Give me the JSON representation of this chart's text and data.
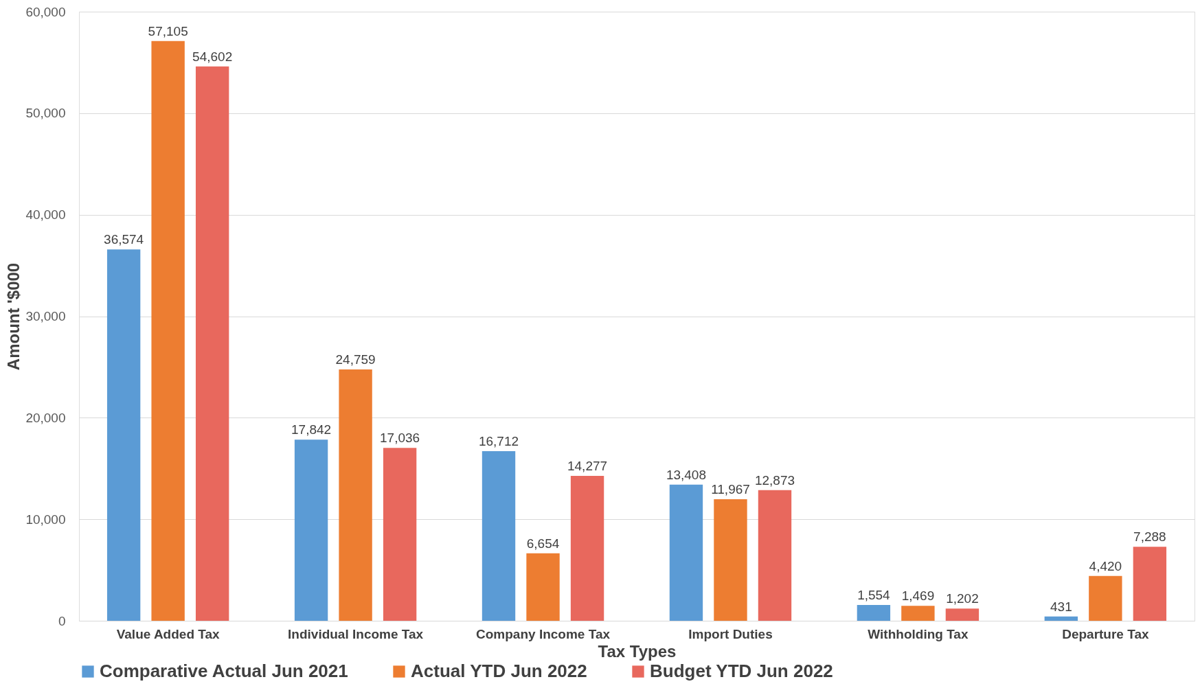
{
  "chart_data": {
    "type": "bar",
    "xlabel": "Tax Types",
    "ylabel": "Amount '$000",
    "categories": [
      "Value Added Tax",
      "Individual Income Tax",
      "Company Income Tax",
      "Import Duties",
      "Withholding Tax",
      "Departure Tax"
    ],
    "series": [
      {
        "name": "Comparative Actual Jun 2021",
        "color": "#5b9bd5",
        "values": [
          36574,
          17842,
          16712,
          13408,
          1554,
          431
        ],
        "value_labels": [
          "36,574",
          "17,842",
          "16,712",
          "13,408",
          "1,554",
          "431"
        ]
      },
      {
        "name": "Actual YTD Jun 2022",
        "color": "#ed7d31",
        "values": [
          57105,
          24759,
          6654,
          11967,
          1469,
          4420
        ],
        "value_labels": [
          "57,105",
          "24,759",
          "6,654",
          "11,967",
          "1,469",
          "4,420"
        ]
      },
      {
        "name": "Budget YTD Jun 2022",
        "color": "#e8685d",
        "values": [
          54602,
          17036,
          14277,
          12873,
          1202,
          7288
        ],
        "value_labels": [
          "54,602",
          "17,036",
          "14,277",
          "12,873",
          "1,202",
          "7,288"
        ]
      }
    ],
    "ylim": [
      0,
      60000
    ],
    "yticks": [
      0,
      {
        "value": 10000,
        "label": "10,000"
      },
      {
        "value": 20000,
        "label": "20,000"
      },
      {
        "value": 30000,
        "label": "30,000"
      },
      {
        "value": 40000,
        "label": "40,000"
      },
      {
        "value": 50000,
        "label": "50,000"
      },
      {
        "value": 60000,
        "label": "60,000"
      }
    ],
    "grid": "y",
    "legend": "bottom"
  }
}
